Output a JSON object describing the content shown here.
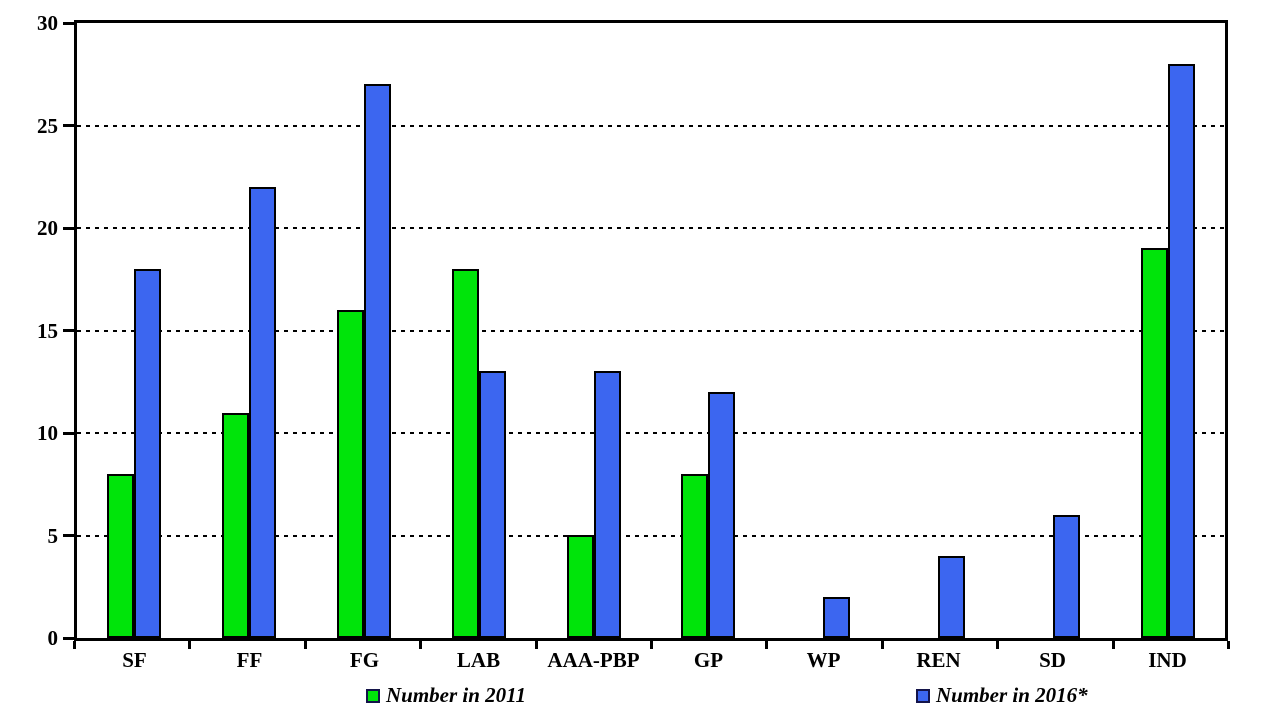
{
  "chart_data": {
    "type": "bar",
    "title": "",
    "categories": [
      "SF",
      "FF",
      "FG",
      "LAB",
      "AAA-PBP",
      "GP",
      "WP",
      "REN",
      "SD",
      "IND"
    ],
    "series": [
      {
        "id": "2011",
        "name": "Number in 2011",
        "color": "#00E40A",
        "values": [
          8,
          11,
          16,
          18,
          5,
          8,
          0,
          0,
          0,
          19
        ]
      },
      {
        "id": "2016",
        "name": "Number in 2016*",
        "color": "#3C66F0",
        "values": [
          18,
          22,
          27,
          13,
          13,
          12,
          2,
          4,
          6,
          28
        ]
      }
    ],
    "ylim": [
      0,
      30
    ],
    "ytick_values": [
      0,
      5,
      10,
      15,
      20,
      25,
      30
    ],
    "xlabel": "",
    "ylabel": "",
    "grid": "dashed-horizontal",
    "legend_position": "bottom",
    "bar_outline_color": "#000000",
    "axis_color": "#000000"
  }
}
